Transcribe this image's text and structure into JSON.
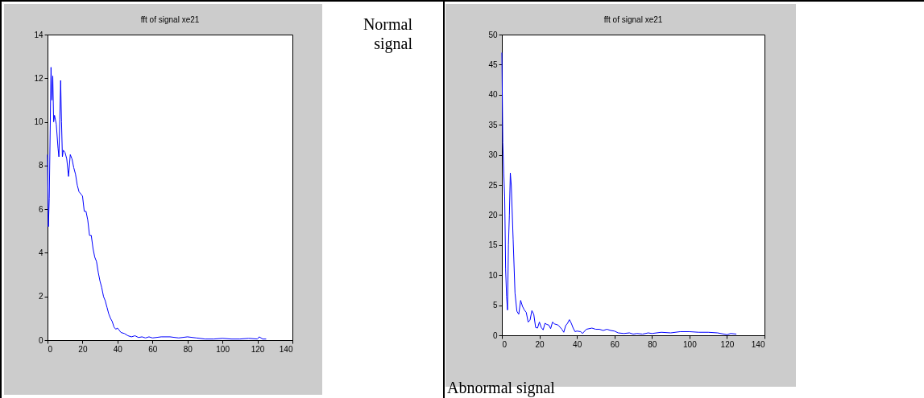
{
  "chart_data": [
    {
      "type": "line",
      "title": "fft of signal xe21",
      "annotations": [
        "Normal signal"
      ],
      "xlim": [
        0,
        140
      ],
      "xticks": [
        0,
        20,
        40,
        60,
        80,
        100,
        120,
        140
      ],
      "ylim": [
        0,
        14
      ],
      "yticks": [
        0,
        2,
        4,
        6,
        8,
        10,
        12,
        14
      ],
      "grid": false,
      "marker": "none",
      "line_style": "solid",
      "series": [
        {
          "color": "#0000ff",
          "x": [
            0,
            0.5,
            1,
            2,
            2.5,
            3,
            3.5,
            4,
            5,
            6,
            6.5,
            7,
            7.5,
            8,
            8.5,
            9,
            10,
            11,
            12,
            13,
            14,
            15,
            16,
            17,
            18,
            19,
            20,
            21,
            22,
            23,
            24,
            25,
            26,
            27,
            28,
            29,
            30,
            31,
            32,
            33,
            34,
            35,
            36,
            37,
            38,
            39,
            40,
            41,
            42,
            44,
            46,
            48,
            50,
            52,
            54,
            56,
            58,
            60,
            65,
            70,
            75,
            80,
            85,
            90,
            95,
            100,
            105,
            110,
            115,
            120,
            121,
            123,
            125
          ],
          "values": [
            8.5,
            5.2,
            6.5,
            12.5,
            11,
            12.1,
            10,
            10.3,
            9.9,
            8.8,
            8.4,
            10.1,
            11.9,
            10,
            8.4,
            8.7,
            8.6,
            8.3,
            7.5,
            8.5,
            8.3,
            7.9,
            7.6,
            7.1,
            6.8,
            6.7,
            6.6,
            5.9,
            5.9,
            5.5,
            4.8,
            4.8,
            4.2,
            3.8,
            3.6,
            3.1,
            2.7,
            2.4,
            2.0,
            1.8,
            1.5,
            1.2,
            1.0,
            0.85,
            0.6,
            0.5,
            0.55,
            0.45,
            0.35,
            0.3,
            0.2,
            0.15,
            0.2,
            0.12,
            0.15,
            0.1,
            0.15,
            0.1,
            0.15,
            0.15,
            0.1,
            0.15,
            0.1,
            0.05,
            0.05,
            0.08,
            0.05,
            0.05,
            0.08,
            0.05,
            0.15,
            0.05,
            0.05
          ]
        }
      ]
    },
    {
      "type": "line",
      "title": "fft of signal xe21",
      "annotations": [
        "Abnormal signal"
      ],
      "xlim": [
        0,
        140
      ],
      "xticks": [
        0,
        20,
        40,
        60,
        80,
        100,
        120,
        140
      ],
      "ylim": [
        0,
        50
      ],
      "yticks": [
        0,
        5,
        10,
        15,
        20,
        25,
        30,
        35,
        40,
        45,
        50
      ],
      "grid": false,
      "marker": "none",
      "line_style": "solid",
      "series": [
        {
          "color": "#0000ff",
          "x": [
            0,
            0.5,
            1,
            1.5,
            2,
            2.5,
            3,
            3.5,
            4,
            4.5,
            5,
            6,
            7,
            8,
            9,
            10,
            11,
            12,
            13,
            14,
            15,
            16,
            17,
            18,
            19,
            20,
            21,
            22,
            23,
            24,
            25,
            26,
            27,
            28,
            30,
            32,
            33,
            34,
            35,
            36,
            37,
            38,
            39,
            40,
            42,
            43,
            45,
            48,
            50,
            52,
            54,
            56,
            58,
            60,
            62,
            65,
            68,
            70,
            72,
            75,
            78,
            80,
            85,
            90,
            95,
            100,
            105,
            110,
            115,
            120,
            122,
            125
          ],
          "values": [
            47,
            32,
            27,
            23,
            11,
            6.5,
            4.2,
            15,
            20,
            27,
            25,
            16,
            7,
            4,
            3.5,
            5.8,
            4.8,
            4.2,
            3.8,
            2.2,
            2.5,
            4.1,
            3.5,
            1.3,
            1.2,
            2.2,
            1.3,
            0.9,
            2.0,
            1.8,
            1.7,
            1.1,
            2.2,
            1.9,
            1.7,
            1.0,
            0.5,
            1.6,
            2.0,
            2.6,
            2.0,
            1.2,
            0.6,
            0.7,
            0.6,
            0.3,
            1.0,
            1.2,
            1.0,
            1.0,
            0.8,
            1.0,
            0.8,
            0.7,
            0.4,
            0.3,
            0.4,
            0.2,
            0.3,
            0.2,
            0.4,
            0.3,
            0.5,
            0.4,
            0.6,
            0.6,
            0.5,
            0.5,
            0.4,
            0.1,
            0.3,
            0.2
          ]
        }
      ]
    }
  ]
}
